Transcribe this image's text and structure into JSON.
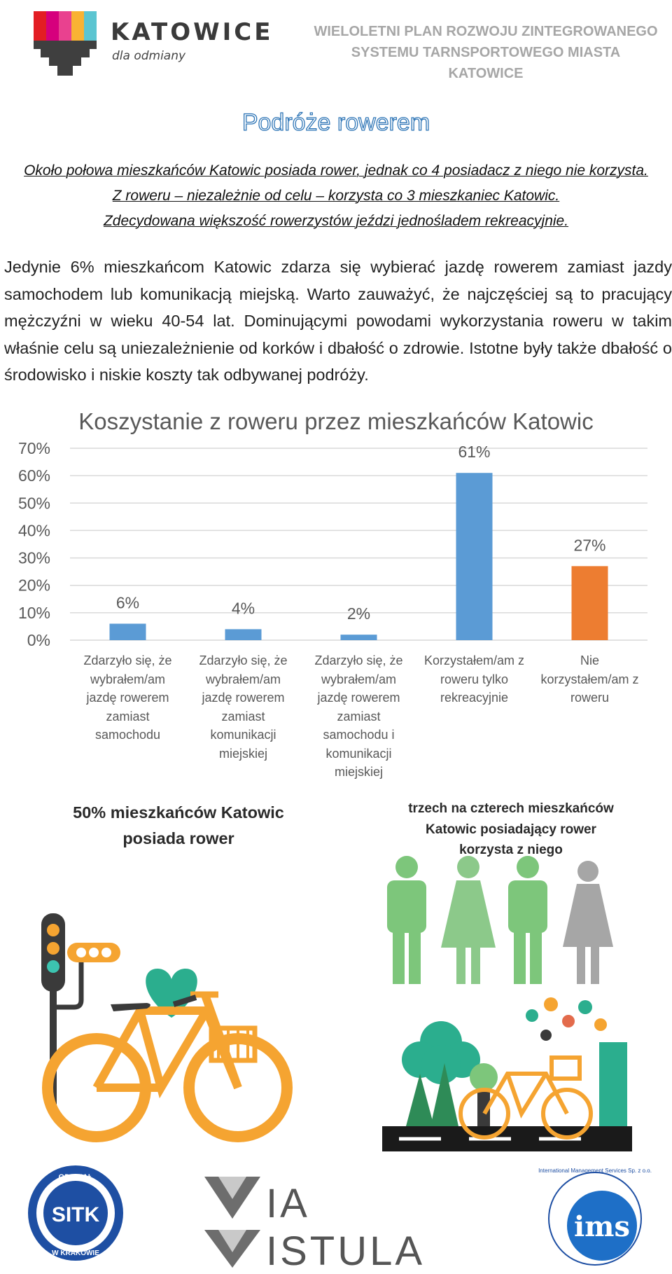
{
  "header": {
    "city_name": "KATOWICE",
    "city_tagline": "dla odmiany",
    "doc_title_lines": [
      "WIELOLETNI PLAN ROZWOJU ZINTEGROWANEGO",
      "SYSTEMU TARNSPORTOWEGO MIASTA",
      "KATOWICE"
    ]
  },
  "section_title": "Podróże rowerem",
  "summary_lines": [
    "Około połowa mieszkańców Katowic posiada rower, jednak co 4 posiadacz z niego nie korzysta.",
    "Z roweru – niezależnie od celu – korzysta co 3 mieszkaniec Katowic.",
    "Zdecydowana większość rowerzystów jeździ jednośladem rekreacyjnie."
  ],
  "body_text": "Jedynie 6% mieszkańcom Katowic zdarza się wybierać jazdę rowerem zamiast jazdy samochodem lub komunikacją miejską. Warto zauważyć, że najczęściej są to pracujący mężczyźni w wieku 40-54 lat. Dominującymi powodami wykorzystania roweru w takim właśnie celu są uniezależnienie od korków i dbałość o zdrowie. Istotne były także dbałość o środowisko i niskie koszty tak odbywanej podróży.",
  "chart_data": {
    "type": "bar",
    "title": "Koszystanie z roweru przez mieszkańców Katowic",
    "categories": [
      "Zdarzyło się, że wybrałem/am jazdę rowerem zamiast samochodu",
      "Zdarzyło się, że wybrałem/am jazdę rowerem zamiast komunikacji miejskiej",
      "Zdarzyło się, że wybrałem/am jazdę rowerem zamiast samochodu i komunikacji miejskiej",
      "Korzystałem/am z roweru tylko rekreacyjnie",
      "Nie korzystałem/am z roweru"
    ],
    "category_lines": [
      [
        "Zdarzyło się, że",
        "wybrałem/am",
        "jazdę rowerem",
        "zamiast",
        "samochodu"
      ],
      [
        "Zdarzyło się, że",
        "wybrałem/am",
        "jazdę rowerem",
        "zamiast",
        "komunikacji",
        "miejskiej"
      ],
      [
        "Zdarzyło się, że",
        "wybrałem/am",
        "jazdę rowerem",
        "zamiast",
        "samochodu i",
        "komunikacji",
        "miejskiej"
      ],
      [
        "Korzystałem/am z",
        "roweru tylko",
        "rekreacyjnie"
      ],
      [
        "Nie",
        "korzystałem/am z",
        "roweru"
      ]
    ],
    "values": [
      6,
      4,
      2,
      61,
      27
    ],
    "data_labels": [
      "6%",
      "4%",
      "2%",
      "61%",
      "27%"
    ],
    "bar_colors": [
      "#5b9bd5",
      "#5b9bd5",
      "#5b9bd5",
      "#5b9bd5",
      "#ed7d31"
    ],
    "y_ticks": [
      "0%",
      "10%",
      "20%",
      "30%",
      "40%",
      "50%",
      "60%",
      "70%"
    ],
    "ylim": [
      0,
      70
    ],
    "grid": true,
    "legend": "none"
  },
  "infographic_left": {
    "caption_lines": [
      "50% mieszkańców Katowic",
      "posiada rower"
    ],
    "icons": [
      "traffic-light-icon",
      "heart-icon",
      "bicycle-icon"
    ]
  },
  "infographic_right": {
    "caption_lines": [
      "trzech na czterech mieszkańców",
      "Katowic posiadający rower",
      "korzysta z niego"
    ],
    "figures": [
      "man",
      "woman",
      "man",
      "woman"
    ],
    "figure_colors": [
      "#7dc67b",
      "#8cc98a",
      "#7dc67b",
      "#a6a6a6"
    ]
  },
  "footer": {
    "sitk_texts": [
      "ODDZIAŁ",
      "SITK",
      "W KRAKOWIE"
    ],
    "via_vistula_lines": [
      "IA",
      "ISTULA"
    ],
    "ims_text": "ims",
    "ims_ring_text": "International Management Services Sp. z o.o."
  },
  "colors": {
    "accent_blue": "#2e75b6",
    "bar_blue": "#5b9bd5",
    "bar_orange": "#ed7d31",
    "bike_orange": "#f5a431",
    "green": "#7dc67b"
  }
}
